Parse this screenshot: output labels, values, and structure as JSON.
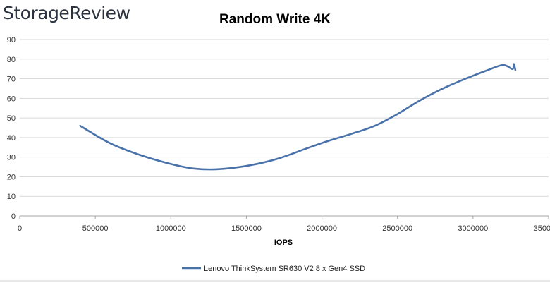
{
  "brand": {
    "logo_text": "StorageReview"
  },
  "chart_data": {
    "type": "line",
    "title": "Random Write 4K",
    "xlabel": "IOPS",
    "ylabel": "",
    "xlim": [
      0,
      3500000
    ],
    "ylim": [
      0,
      90
    ],
    "x_ticks": [
      0,
      500000,
      1000000,
      1500000,
      2000000,
      2500000,
      3000000,
      3500000
    ],
    "x_tick_labels": [
      "0",
      "500000",
      "1000000",
      "1500000",
      "2000000",
      "2500000",
      "3000000",
      "3500000"
    ],
    "y_ticks": [
      0,
      10,
      20,
      30,
      40,
      50,
      60,
      70,
      80,
      90
    ],
    "y_tick_labels": [
      "0",
      "10",
      "20",
      "30",
      "40",
      "50",
      "60",
      "70",
      "80",
      "90"
    ],
    "grid": "horizontal",
    "legend_position": "bottom",
    "series": [
      {
        "name": "Lenovo ThinkSystem SR630 V2 8 x Gen4 SSD",
        "color": "#4a72aa",
        "points": [
          [
            400000,
            46
          ],
          [
            600000,
            37
          ],
          [
            800000,
            31
          ],
          [
            1000000,
            26.5
          ],
          [
            1150000,
            24.2
          ],
          [
            1300000,
            23.8
          ],
          [
            1500000,
            25.5
          ],
          [
            1700000,
            29
          ],
          [
            1900000,
            34.5
          ],
          [
            2050000,
            38.5
          ],
          [
            2200000,
            42
          ],
          [
            2350000,
            46
          ],
          [
            2500000,
            52
          ],
          [
            2650000,
            59
          ],
          [
            2800000,
            65
          ],
          [
            2950000,
            70
          ],
          [
            3100000,
            74.5
          ],
          [
            3200000,
            77
          ],
          [
            3260000,
            75
          ],
          [
            3270000,
            77.5
          ],
          [
            3280000,
            74.5
          ]
        ]
      }
    ]
  }
}
